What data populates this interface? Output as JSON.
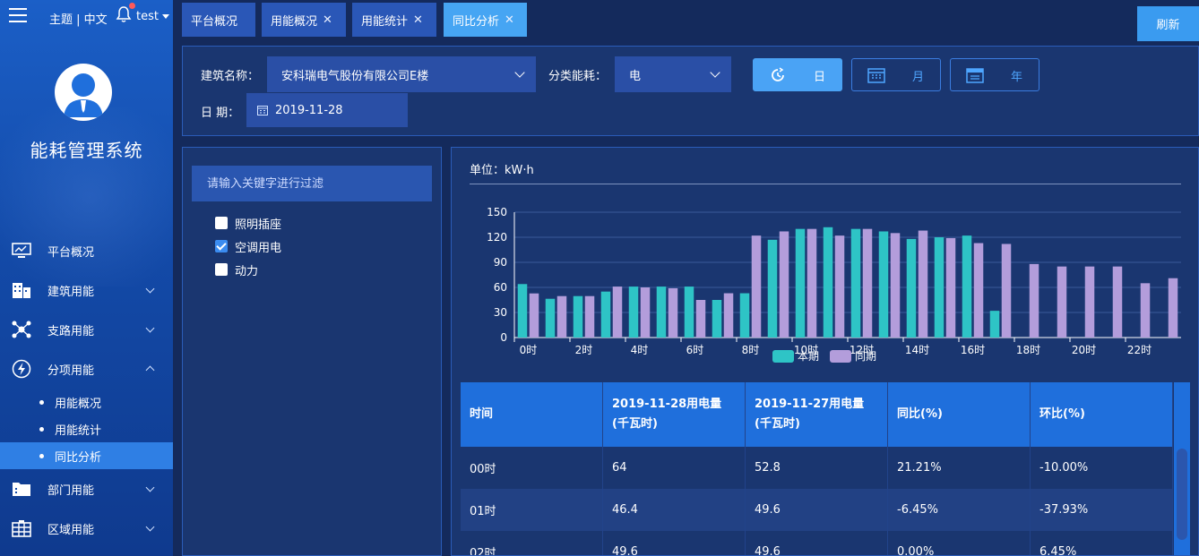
{
  "header": {
    "theme_label": "主题",
    "lang_label": "中文",
    "user": "test"
  },
  "sidebar": {
    "system_title": "能耗管理系统",
    "items": [
      {
        "label": "平台概况",
        "icon": "monitor-icon",
        "expandable": false
      },
      {
        "label": "建筑用能",
        "icon": "building-icon",
        "expandable": true
      },
      {
        "label": "支路用能",
        "icon": "network-icon",
        "expandable": true
      },
      {
        "label": "分项用能",
        "icon": "lightning-icon",
        "expandable": true,
        "expanded": true
      },
      {
        "label": "部门用能",
        "icon": "folder-icon",
        "expandable": true
      },
      {
        "label": "区域用能",
        "icon": "grid-icon",
        "expandable": true
      }
    ],
    "subitems": [
      {
        "label": "用能概况",
        "active": false
      },
      {
        "label": "用能统计",
        "active": false
      },
      {
        "label": "同比分析",
        "active": true
      }
    ]
  },
  "tabs": [
    {
      "label": "平台概况",
      "closable": false,
      "active": false
    },
    {
      "label": "用能概况",
      "closable": true,
      "active": false
    },
    {
      "label": "用能统计",
      "closable": true,
      "active": false
    },
    {
      "label": "同比分析",
      "closable": true,
      "active": true
    }
  ],
  "tab_close_glyph": "✕",
  "refresh_label": "刷新",
  "filter": {
    "building_label": "建筑名称：",
    "building_value": "安科瑞电气股份有限公司E楼",
    "category_label": "分类能耗：",
    "category_value": "电",
    "period_day": "日",
    "period_month": "月",
    "period_year": "年",
    "date_label": "日 期：",
    "date_value": "2019-11-28"
  },
  "tree": {
    "search_placeholder": "请输入关键字进行过滤",
    "items": [
      {
        "label": "照明插座",
        "checked": false
      },
      {
        "label": "空调用电",
        "checked": true
      },
      {
        "label": "动力",
        "checked": false
      }
    ]
  },
  "unit_label": "单位：kW·h",
  "chart_data": {
    "type": "bar",
    "categories": [
      "0时",
      "1时",
      "2时",
      "3时",
      "4时",
      "5时",
      "6时",
      "7时",
      "8时",
      "9时",
      "10时",
      "11时",
      "12时",
      "13时",
      "14时",
      "15时",
      "16时",
      "17时",
      "18时",
      "19时",
      "20时",
      "21时",
      "22时",
      "23时"
    ],
    "x_tick_labels": [
      "0时",
      "2时",
      "4时",
      "6时",
      "8时",
      "10时",
      "12时",
      "14时",
      "16时",
      "18时",
      "20时",
      "22时"
    ],
    "series": [
      {
        "name": "本期",
        "color": "#2ec4c6",
        "values": [
          64,
          46.4,
          49.6,
          55,
          61,
          61,
          61,
          45,
          53,
          117,
          130,
          132,
          130,
          127,
          118,
          120,
          122,
          32,
          0,
          0,
          0,
          0,
          0,
          0
        ]
      },
      {
        "name": "同期",
        "color": "#b39ddb",
        "values": [
          52.8,
          49.6,
          49.6,
          61,
          60,
          59,
          45,
          53,
          122,
          127,
          130,
          122,
          130,
          125,
          128,
          119,
          113,
          112,
          88,
          85,
          85,
          85,
          65,
          71
        ]
      }
    ],
    "ylim": [
      0,
      150
    ],
    "yticks": [
      0,
      30,
      60,
      90,
      120,
      150
    ],
    "legend_position": "bottom-center",
    "grid": true
  },
  "table": {
    "headers": [
      "时间",
      "2019-11-28用电量(千瓦时)",
      "2019-11-27用电量(千瓦时)",
      "同比(%)",
      "环比(%)"
    ],
    "rows": [
      [
        "00时",
        "64",
        "52.8",
        "21.21%",
        "-10.00%"
      ],
      [
        "01时",
        "46.4",
        "49.6",
        "-6.45%",
        "-37.93%"
      ],
      [
        "02时",
        "49.6",
        "49.6",
        "0.00%",
        "6.45%"
      ]
    ]
  }
}
